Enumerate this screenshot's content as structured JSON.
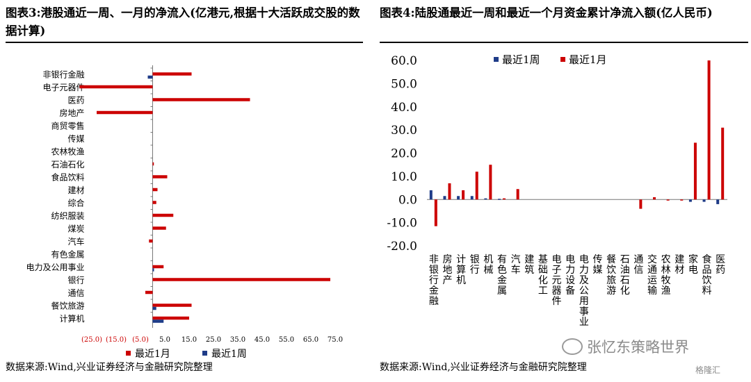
{
  "left": {
    "title": "图表3:港股通近一周、一月的净流入(亿港元,根据十大活跃成交股的数据计算)",
    "source": "数据来源:Wind,兴业证券经济与金融研究院整理"
  },
  "right": {
    "title": "图表4:陆股通最近一周和最近一个月资金累计净流入额(亿人民币)",
    "source": "数据来源:Wind,兴业证券经济与金融研究院整理"
  },
  "watermark": {
    "text": "张忆东策略世界",
    "icon": "wechat-icon",
    "logo_text": "格隆汇"
  },
  "colors": {
    "month": "#cc0000",
    "week": "#1f3c88"
  },
  "chart_data": [
    {
      "type": "bar",
      "orientation": "horizontal",
      "categories": [
        "非银行金融",
        "电子元器件",
        "医药",
        "房地产",
        "商贸零售",
        "传媒",
        "农林牧渔",
        "石油石化",
        "食品饮料",
        "建材",
        "综合",
        "纺织服装",
        "煤炭",
        "汽车",
        "有色金属",
        "电力及公用事业",
        "银行",
        "通信",
        "餐饮旅游",
        "计算机"
      ],
      "series": [
        {
          "name": "最近1月",
          "values": [
            16,
            -30,
            40,
            -23,
            0,
            0,
            0,
            0.5,
            6,
            2,
            1.5,
            8.5,
            5.5,
            -1.5,
            0,
            4.5,
            73,
            -3,
            16,
            15
          ]
        },
        {
          "name": "最近1周",
          "values": [
            -2,
            0,
            0,
            0,
            0,
            0,
            0,
            0,
            0,
            0,
            0,
            0,
            0,
            0,
            0,
            0.5,
            0,
            0,
            1.5,
            4.5
          ]
        }
      ],
      "xlim": [
        -25,
        75
      ],
      "ticks": [
        "(25.0)",
        "(15.0)",
        "(5.0)",
        "5.0",
        "15.0",
        "25.0",
        "35.0",
        "45.0",
        "55.0",
        "65.0",
        "75.0"
      ],
      "legend": "bottom"
    },
    {
      "type": "bar",
      "orientation": "vertical",
      "categories": [
        "非银行金融",
        "房地产",
        "计算机",
        "银行",
        "机械",
        "有色金属",
        "汽车",
        "建筑",
        "基础化工",
        "电子元器件",
        "电力设备",
        "电力及公用事业",
        "传媒",
        "餐饮旅游",
        "石油石化",
        "通信",
        "交通运输",
        "农林牧渔",
        "建材",
        "家电",
        "食品饮料",
        "医药"
      ],
      "series": [
        {
          "name": "最近1周",
          "values": [
            4,
            1.5,
            1.5,
            1.5,
            0.5,
            0.3,
            0,
            0,
            0,
            0,
            0,
            0,
            0,
            0,
            0,
            0,
            0,
            0,
            0,
            -1,
            -1,
            -2
          ]
        },
        {
          "name": "最近1月",
          "values": [
            -11.5,
            7,
            4,
            12,
            15,
            0.5,
            4.5,
            0,
            0,
            0,
            0,
            0,
            0,
            0,
            0,
            -4,
            1,
            -0.3,
            -0.3,
            24.5,
            60,
            31
          ]
        }
      ],
      "ylim": [
        -20,
        60
      ],
      "ticks": [
        "60.0",
        "50.0",
        "40.0",
        "30.0",
        "20.0",
        "10.0",
        "0.0",
        "-10.0",
        "-20.0"
      ],
      "legend": "top-left"
    }
  ]
}
